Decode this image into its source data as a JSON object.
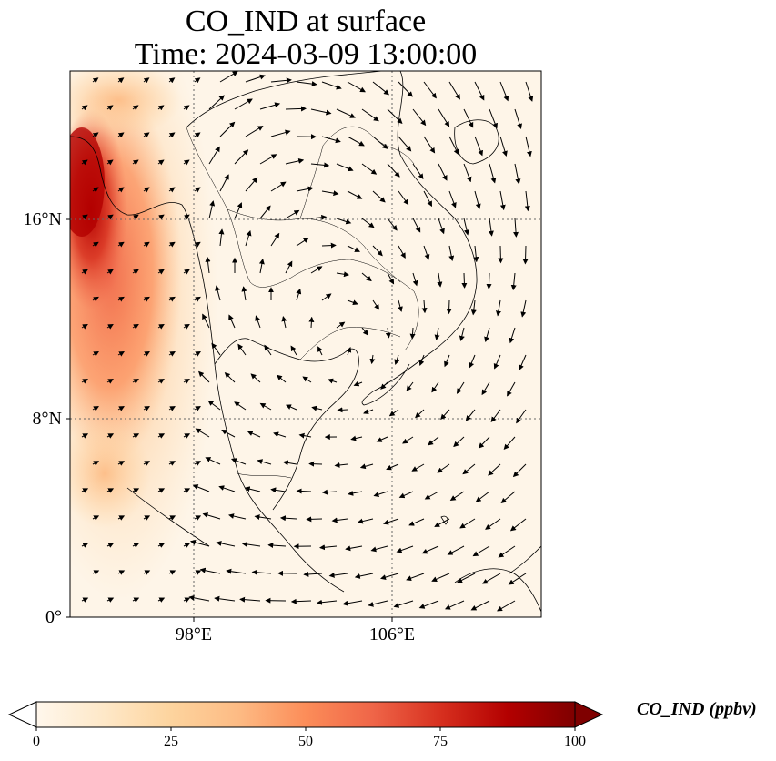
{
  "title": {
    "line1": "CO_IND at surface",
    "line2": "Time: 2024-03-09 13:00:00"
  },
  "axes": {
    "lat_ticks": [
      {
        "label": "16°N",
        "value": 16
      },
      {
        "label": "8°N",
        "value": 8
      },
      {
        "label": "0°",
        "value": 0
      }
    ],
    "lon_ticks": [
      {
        "label": "98°E",
        "value": 98
      },
      {
        "label": "106°E",
        "value": 106
      }
    ],
    "lon_range": [
      93,
      112
    ],
    "lat_range": [
      0,
      22
    ],
    "gridlines": "dotted"
  },
  "colorbar": {
    "label": "CO_IND (ppbv)",
    "min": 0,
    "max": 100,
    "ticks": [
      "0",
      "25",
      "50",
      "75",
      "100"
    ],
    "extend": "both",
    "colormap": "OrRd",
    "colors": [
      "#fff7ec",
      "#fee8c8",
      "#fdd49e",
      "#fdbb84",
      "#fc8d59",
      "#ef6548",
      "#d7301f",
      "#b30000",
      "#7f0000"
    ]
  },
  "field": {
    "description": "High CO_IND concentrations along western edge (Andaman Sea / Myanmar coast), peaking near 17-18°N, 93-94°E; near zero elsewhere.",
    "peak_value": 90
  },
  "wind": {
    "pattern": "Cyclonic-like circulation over the Gulf of Thailand and South China Sea; easterly/northeasterly flow in the east, southwesterly over Andaman Sea."
  }
}
